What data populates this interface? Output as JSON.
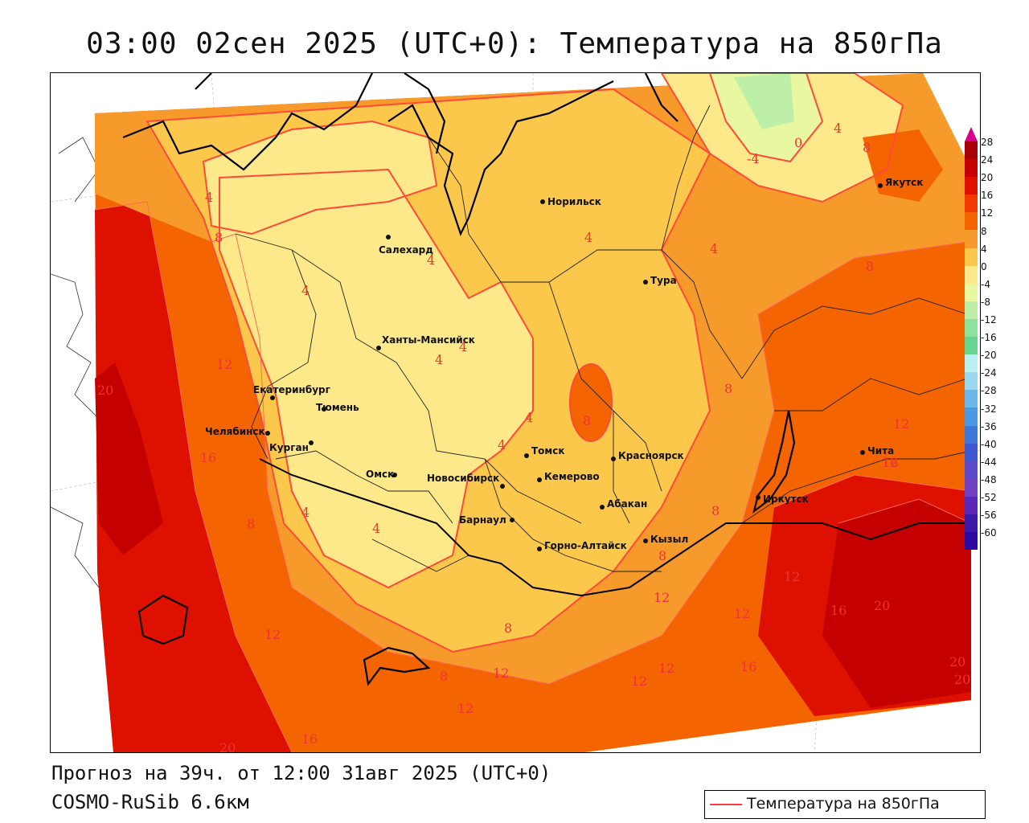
{
  "title": "03:00 02сен 2025 (UTC+0): Температура на 850гПа",
  "forecast_line": "Прогноз на 39ч. от 12:00 31авг 2025 (UTC+0)",
  "model_line": "COSMO-RuSib 6.6км",
  "legend": {
    "label": "Температура на 850гПа",
    "line_color": "#ff3b3b"
  },
  "scale": {
    "labels": [
      "28",
      "24",
      "20",
      "16",
      "12",
      "8",
      "4",
      "0",
      "-4",
      "-8",
      "-12",
      "-16",
      "-20",
      "-24",
      "-28",
      "-32",
      "-36",
      "-40",
      "-44",
      "-48",
      "-52",
      "-56",
      "-60"
    ],
    "colors": [
      "#a8000a",
      "#c40000",
      "#de1000",
      "#f23a00",
      "#f46400",
      "#f79a2c",
      "#fbc84b",
      "#fde98a",
      "#e9f7a0",
      "#bdf0a6",
      "#8de39b",
      "#66d58f",
      "#b7f1f1",
      "#9ad8f0",
      "#6ab8ea",
      "#4a98e2",
      "#3d78d9",
      "#3d58d0",
      "#5a4ac8",
      "#7040c0",
      "#5a28b8",
      "#3a18a8",
      "#2a0aa0"
    ]
  },
  "cities": [
    {
      "name": "Норильск"
    },
    {
      "name": "Якутск"
    },
    {
      "name": "Салехард"
    },
    {
      "name": "Тура"
    },
    {
      "name": "Ханты-Мансийск"
    },
    {
      "name": "Екатеринбург"
    },
    {
      "name": "Тюмень"
    },
    {
      "name": "Челябинск"
    },
    {
      "name": "Курган"
    },
    {
      "name": "Омск"
    },
    {
      "name": "Новосибирск"
    },
    {
      "name": "Томск"
    },
    {
      "name": "Кемерово"
    },
    {
      "name": "Красноярск"
    },
    {
      "name": "Абакан"
    },
    {
      "name": "Барнаул"
    },
    {
      "name": "Горно-Алтайск"
    },
    {
      "name": "Кызыл"
    },
    {
      "name": "Иркутск"
    },
    {
      "name": "Чита"
    }
  ],
  "isolines": [
    {
      "value": "-4"
    },
    {
      "value": "0"
    },
    {
      "value": "4"
    },
    {
      "value": "8"
    },
    {
      "value": "4"
    },
    {
      "value": "8"
    },
    {
      "value": "4"
    },
    {
      "value": "4"
    },
    {
      "value": "4"
    },
    {
      "value": "8"
    },
    {
      "value": "4"
    },
    {
      "value": "4"
    },
    {
      "value": "4"
    },
    {
      "value": "8"
    },
    {
      "value": "8"
    },
    {
      "value": "12"
    },
    {
      "value": "20"
    },
    {
      "value": "12"
    },
    {
      "value": "16"
    },
    {
      "value": "4"
    },
    {
      "value": "4"
    },
    {
      "value": "8"
    },
    {
      "value": "4"
    },
    {
      "value": "12"
    },
    {
      "value": "16"
    },
    {
      "value": "8"
    },
    {
      "value": "8"
    },
    {
      "value": "4"
    },
    {
      "value": "12"
    },
    {
      "value": "12"
    },
    {
      "value": "12"
    },
    {
      "value": "16"
    },
    {
      "value": "20"
    },
    {
      "value": "12"
    },
    {
      "value": "8"
    },
    {
      "value": "8"
    },
    {
      "value": "12"
    },
    {
      "value": "12"
    },
    {
      "value": "12"
    },
    {
      "value": "16"
    },
    {
      "value": "12"
    },
    {
      "value": "16"
    },
    {
      "value": "20"
    },
    {
      "value": "20"
    },
    {
      "value": "20"
    }
  ]
}
